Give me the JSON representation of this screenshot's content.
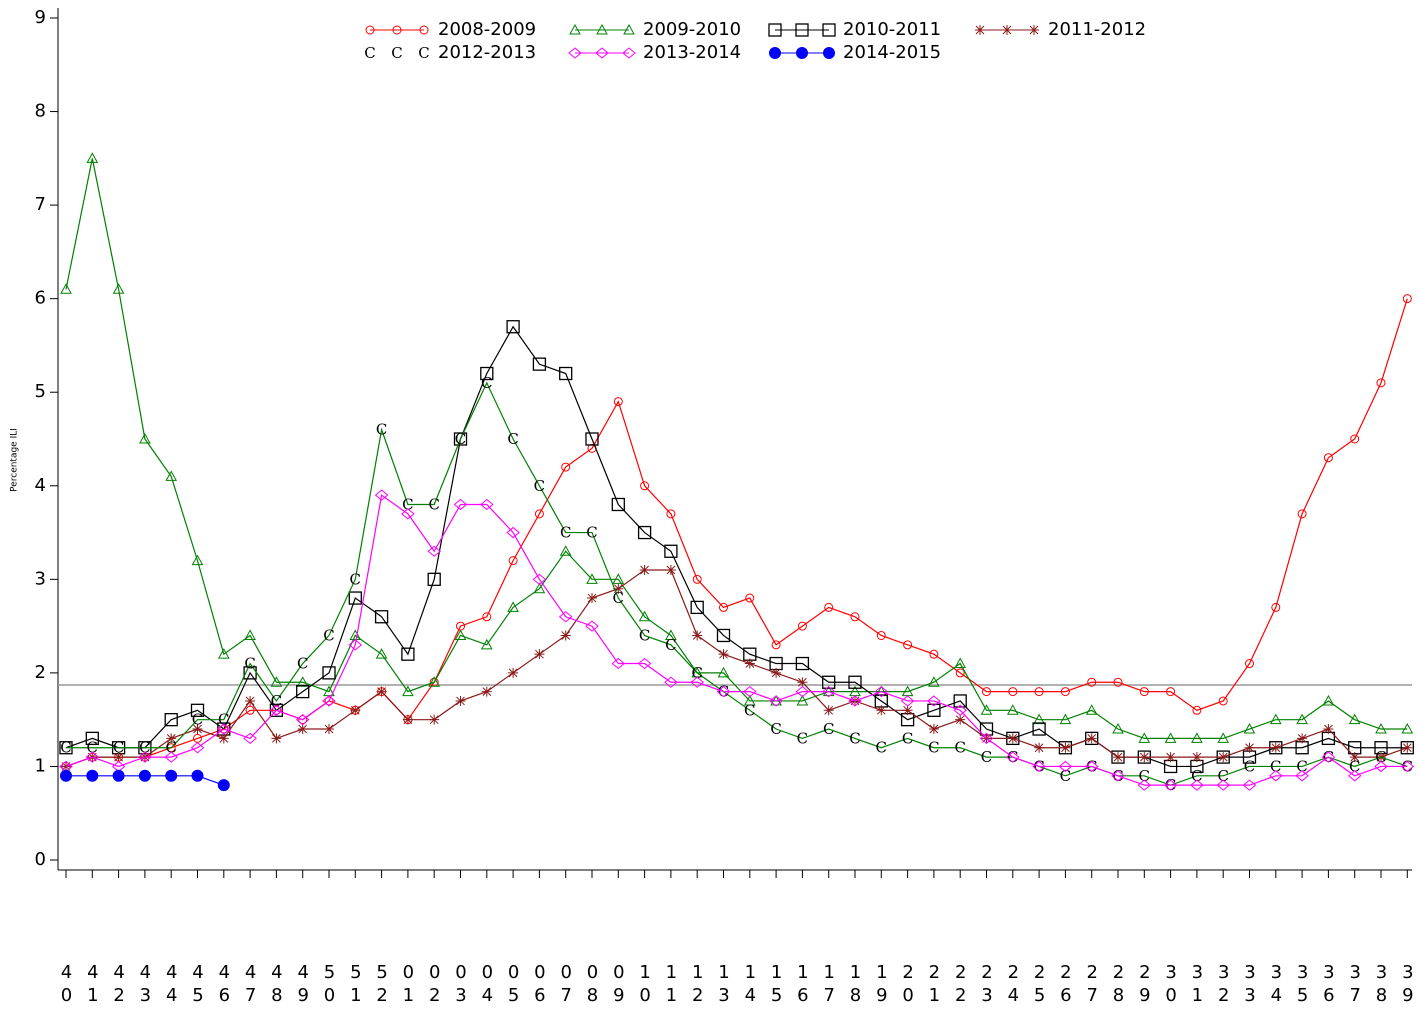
{
  "chart_data": {
    "type": "line",
    "y_label": "Percentage ILI",
    "categories": [
      "40",
      "41",
      "42",
      "43",
      "44",
      "45",
      "46",
      "47",
      "48",
      "49",
      "50",
      "51",
      "52",
      "01",
      "02",
      "03",
      "04",
      "05",
      "06",
      "07",
      "08",
      "09",
      "10",
      "11",
      "12",
      "13",
      "14",
      "15",
      "16",
      "17",
      "18",
      "19",
      "20",
      "21",
      "22",
      "23",
      "24",
      "25",
      "26",
      "27",
      "28",
      "29",
      "30",
      "31",
      "32",
      "33",
      "34",
      "35",
      "36",
      "37",
      "38",
      "39"
    ],
    "ylim": [
      0,
      9
    ],
    "yticks": [
      0,
      1,
      2,
      3,
      4,
      5,
      6,
      7,
      8,
      9
    ],
    "baseline": 1.87,
    "series": [
      {
        "name": "2008-2009",
        "color": "#ff0000",
        "marker": "circle",
        "values": [
          1.0,
          1.1,
          1.1,
          1.1,
          1.2,
          1.3,
          1.4,
          1.6,
          1.6,
          1.5,
          1.7,
          1.6,
          1.8,
          1.5,
          1.9,
          2.5,
          2.6,
          3.2,
          3.7,
          4.2,
          4.4,
          4.9,
          4.0,
          3.7,
          3.0,
          2.7,
          2.8,
          2.3,
          2.5,
          2.7,
          2.6,
          2.4,
          2.3,
          2.2,
          2.0,
          1.8,
          1.8,
          1.8,
          1.8,
          1.9,
          1.9,
          1.8,
          1.8,
          1.6,
          1.7,
          2.1,
          2.7,
          3.7,
          4.3,
          4.5,
          5.1,
          6.0
        ]
      },
      {
        "name": "2009-2010",
        "color": "#008000",
        "marker": "triangle",
        "values": [
          6.1,
          7.5,
          6.1,
          4.5,
          4.1,
          3.2,
          2.2,
          2.4,
          1.9,
          1.9,
          1.8,
          2.4,
          2.2,
          1.8,
          1.9,
          2.4,
          2.3,
          2.7,
          2.9,
          3.3,
          3.0,
          3.0,
          2.6,
          2.4,
          2.0,
          2.0,
          1.7,
          1.7,
          1.7,
          1.8,
          1.8,
          1.8,
          1.8,
          1.9,
          2.1,
          1.6,
          1.6,
          1.5,
          1.5,
          1.6,
          1.4,
          1.3,
          1.3,
          1.3,
          1.3,
          1.4,
          1.5,
          1.5,
          1.7,
          1.5,
          1.4,
          1.4
        ]
      },
      {
        "name": "2010-2011",
        "color": "#000000",
        "marker": "square",
        "values": [
          1.2,
          1.3,
          1.2,
          1.2,
          1.5,
          1.6,
          1.4,
          2.0,
          1.6,
          1.8,
          2.0,
          2.8,
          2.6,
          2.2,
          3.0,
          4.5,
          5.2,
          5.7,
          5.3,
          5.2,
          4.5,
          3.8,
          3.5,
          3.3,
          2.7,
          2.4,
          2.2,
          2.1,
          2.1,
          1.9,
          1.9,
          1.7,
          1.5,
          1.6,
          1.7,
          1.4,
          1.3,
          1.4,
          1.2,
          1.3,
          1.1,
          1.1,
          1.0,
          1.0,
          1.1,
          1.1,
          1.2,
          1.2,
          1.3,
          1.2,
          1.2,
          1.2
        ]
      },
      {
        "name": "2011-2012",
        "color": "#8b1a1a",
        "marker": "star",
        "values": [
          1.0,
          1.1,
          1.1,
          1.1,
          1.3,
          1.4,
          1.3,
          1.7,
          1.3,
          1.4,
          1.4,
          1.6,
          1.8,
          1.5,
          1.5,
          1.7,
          1.8,
          2.0,
          2.2,
          2.4,
          2.8,
          2.9,
          3.1,
          3.1,
          2.4,
          2.2,
          2.1,
          2.0,
          1.9,
          1.6,
          1.7,
          1.6,
          1.6,
          1.4,
          1.5,
          1.3,
          1.3,
          1.2,
          1.2,
          1.3,
          1.1,
          1.1,
          1.1,
          1.1,
          1.1,
          1.2,
          1.2,
          1.3,
          1.4,
          1.1,
          1.1,
          1.2
        ]
      },
      {
        "name": "2012-2013",
        "color": "#008000",
        "marker": "letter",
        "values": [
          1.2,
          1.2,
          1.2,
          1.2,
          1.2,
          1.5,
          1.5,
          2.1,
          1.7,
          2.1,
          2.4,
          3.0,
          4.6,
          3.8,
          3.8,
          4.5,
          5.1,
          4.5,
          4.0,
          3.5,
          3.5,
          2.8,
          2.4,
          2.3,
          2.0,
          1.8,
          1.6,
          1.4,
          1.3,
          1.4,
          1.3,
          1.2,
          1.3,
          1.2,
          1.2,
          1.1,
          1.1,
          1.0,
          0.9,
          1.0,
          0.9,
          0.9,
          0.8,
          0.9,
          0.9,
          1.0,
          1.0,
          1.0,
          1.1,
          1.0,
          1.1,
          1.0
        ]
      },
      {
        "name": "2013-2014",
        "color": "#ff00ff",
        "marker": "diamond",
        "values": [
          1.0,
          1.1,
          1.0,
          1.1,
          1.1,
          1.2,
          1.4,
          1.3,
          1.6,
          1.5,
          1.7,
          2.3,
          3.9,
          3.7,
          3.3,
          3.8,
          3.8,
          3.5,
          3.0,
          2.6,
          2.5,
          2.1,
          2.1,
          1.9,
          1.9,
          1.8,
          1.8,
          1.7,
          1.8,
          1.8,
          1.7,
          1.8,
          1.7,
          1.7,
          1.6,
          1.3,
          1.1,
          1.0,
          1.0,
          1.0,
          0.9,
          0.8,
          0.8,
          0.8,
          0.8,
          0.8,
          0.9,
          0.9,
          1.1,
          0.9,
          1.0,
          1.0
        ]
      },
      {
        "name": "2014-2015",
        "color": "#0000ff",
        "marker": "dot",
        "values": [
          0.9,
          0.9,
          0.9,
          0.9,
          0.9,
          0.9,
          0.8,
          null,
          null,
          null,
          null,
          null,
          null,
          null,
          null,
          null,
          null,
          null,
          null,
          null,
          null,
          null,
          null,
          null,
          null,
          null,
          null,
          null,
          null,
          null,
          null,
          null,
          null,
          null,
          null,
          null,
          null,
          null,
          null,
          null,
          null,
          null,
          null,
          null,
          null,
          null,
          null,
          null,
          null,
          null,
          null,
          null
        ]
      }
    ]
  }
}
